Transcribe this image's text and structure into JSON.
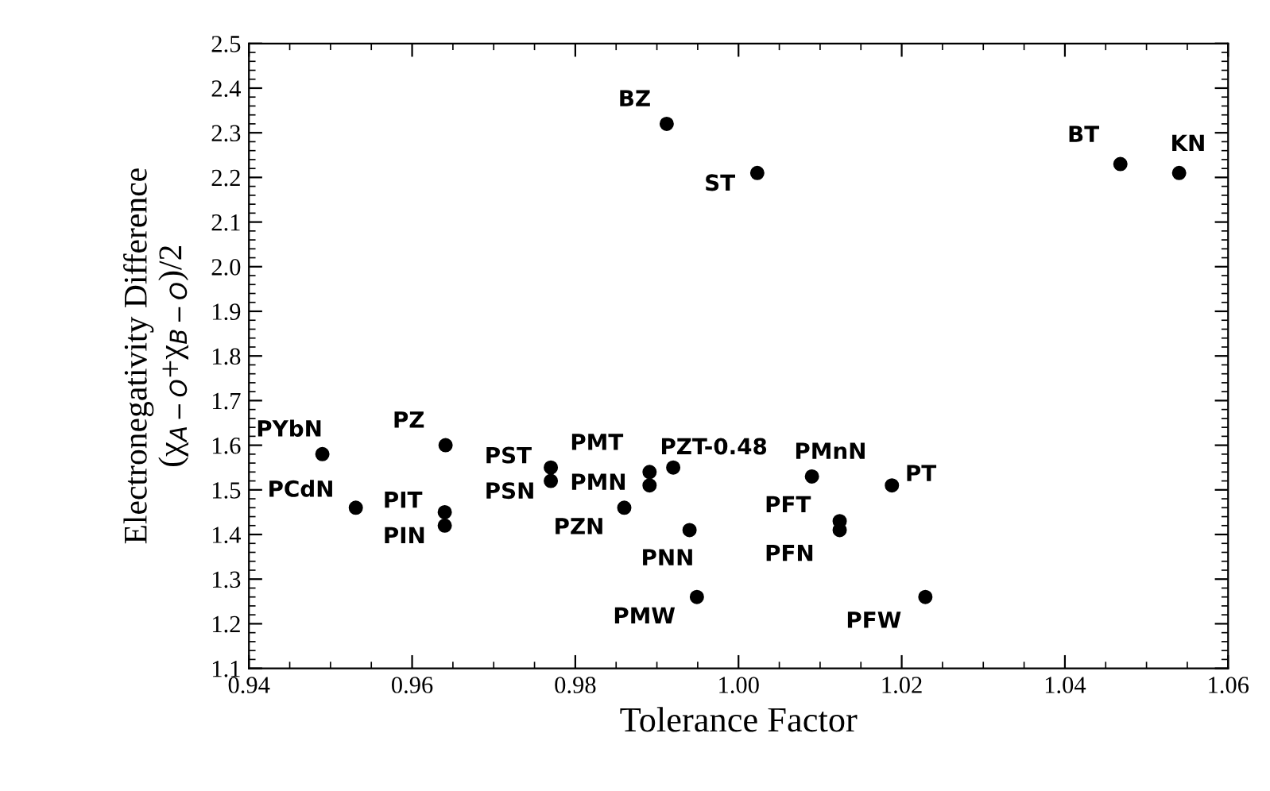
{
  "chart_data": {
    "type": "scatter",
    "xlabel": "Tolerance Factor",
    "ylabel": "Electronegativity Difference\n(χ$_{A−O}$+χ$_{B−O}$)/2",
    "x": [
      0.9912,
      1.0023,
      1.0468,
      1.054,
      0.949,
      0.9641,
      0.9531,
      0.964,
      0.964,
      0.977,
      0.977,
      0.9891,
      0.9891,
      0.992,
      0.986,
      0.994,
      0.9949,
      1.009,
      1.0188,
      1.0124,
      1.0124,
      1.0229
    ],
    "values": [
      2.32,
      2.21,
      2.23,
      2.21,
      1.58,
      1.6,
      1.46,
      1.45,
      1.42,
      1.55,
      1.52,
      1.54,
      1.51,
      1.55,
      1.46,
      1.41,
      1.26,
      1.53,
      1.51,
      1.43,
      1.41,
      1.26
    ],
    "color": "#000000",
    "marker": "circle",
    "grid": false,
    "xlim": [
      0.94,
      1.06
    ],
    "ylim": [
      1.1,
      2.5
    ],
    "xticks": [
      0.94,
      0.96,
      0.98,
      {
        "value": 1.0,
        "label": "1.00"
      },
      1.02,
      1.04,
      1.06
    ],
    "yticks": [
      1.1,
      1.2,
      1.3,
      1.4,
      1.5,
      1.6,
      1.7,
      1.8,
      1.9,
      {
        "value": 2.0,
        "label": "2.0"
      },
      2.1,
      2.2,
      2.3,
      2.4,
      2.5
    ],
    "annotations": [
      {
        "text": "BZ",
        "x": 0.9912,
        "y": 2.32
      },
      {
        "text": "ST",
        "x": 1.0023,
        "y": 2.21
      },
      {
        "text": "BT",
        "x": 1.0468,
        "y": 2.23
      },
      {
        "text": "KN",
        "x": 1.054,
        "y": 2.21
      },
      {
        "text": "PYbN",
        "x": 0.949,
        "y": 1.58
      },
      {
        "text": "PZ",
        "x": 0.9641,
        "y": 1.6
      },
      {
        "text": "PCdN",
        "x": 0.9531,
        "y": 1.46
      },
      {
        "text": "PIT",
        "x": 0.964,
        "y": 1.45
      },
      {
        "text": "PIN",
        "x": 0.964,
        "y": 1.42
      },
      {
        "text": "PST",
        "x": 0.977,
        "y": 1.55
      },
      {
        "text": "PSN",
        "x": 0.977,
        "y": 1.52
      },
      {
        "text": "PMT",
        "x": 0.9891,
        "y": 1.54
      },
      {
        "text": "PMN",
        "x": 0.9891,
        "y": 1.51
      },
      {
        "text": "PZT-0.48",
        "x": 0.992,
        "y": 1.55
      },
      {
        "text": "PZN",
        "x": 0.986,
        "y": 1.46
      },
      {
        "text": "PNN",
        "x": 0.994,
        "y": 1.41
      },
      {
        "text": "PMW",
        "x": 0.9949,
        "y": 1.26
      },
      {
        "text": "PMnN",
        "x": 1.009,
        "y": 1.53
      },
      {
        "text": "PT",
        "x": 1.0188,
        "y": 1.51
      },
      {
        "text": "PFT",
        "x": 1.0124,
        "y": 1.43
      },
      {
        "text": "PFN",
        "x": 1.0124,
        "y": 1.41
      },
      {
        "text": "PFW",
        "x": 1.0229,
        "y": 1.26
      }
    ]
  }
}
